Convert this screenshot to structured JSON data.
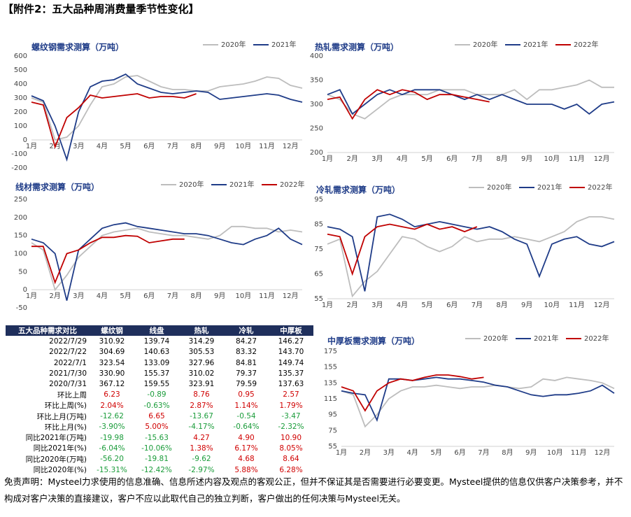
{
  "header": {
    "title": "【附件2：五大品种周消费量季节性变化】"
  },
  "chart_data": [
    {
      "type": "line",
      "title": "螺纹钢需求测算（万吨）",
      "categories": [
        "1月",
        null,
        "2月",
        null,
        "3月",
        null,
        "4月",
        null,
        "5月",
        null,
        "6月",
        null,
        "7月",
        null,
        "8月",
        null,
        "9月",
        null,
        "10月",
        null,
        "11月",
        null,
        "12月",
        null
      ],
      "ylim": [
        -200,
        600
      ],
      "yticks": [
        -200,
        -100,
        0,
        100,
        200,
        300,
        400,
        500,
        600
      ],
      "series": [
        {
          "name": "2020年",
          "color": "#bdbdbd",
          "values": [
            300,
            270,
            0,
            20,
            100,
            250,
            380,
            400,
            450,
            460,
            420,
            380,
            360,
            360,
            350,
            350,
            380,
            390,
            400,
            420,
            450,
            440,
            390,
            370
          ]
        },
        {
          "name": "2021年",
          "color": "#1f3c88",
          "values": [
            315,
            280,
            100,
            -140,
            200,
            380,
            420,
            430,
            470,
            400,
            370,
            340,
            330,
            340,
            350,
            340,
            290,
            300,
            310,
            320,
            330,
            320,
            290,
            270
          ]
        },
        {
          "color": "#c00000",
          "values": [
            270,
            250,
            -50,
            160,
            230,
            320,
            300,
            310,
            320,
            330,
            300,
            310,
            310,
            300,
            330,
            null,
            null,
            null,
            null,
            null,
            null,
            null,
            null,
            null
          ]
        }
      ]
    },
    {
      "type": "line",
      "title": "热轧需求测算（万吨）",
      "categories": [
        "1月",
        null,
        "2月",
        null,
        "3月",
        null,
        "4月",
        null,
        "5月",
        null,
        "6月",
        null,
        "7月",
        null,
        "8月",
        null,
        "9月",
        null,
        "10月",
        null,
        "11月",
        null,
        "12月",
        null
      ],
      "ylim": [
        200,
        400
      ],
      "yticks": [
        200,
        250,
        300,
        350,
        400
      ],
      "series": [
        {
          "name": "2020年",
          "color": "#bdbdbd",
          "values": [
            320,
            310,
            280,
            270,
            290,
            310,
            320,
            320,
            320,
            330,
            330,
            330,
            320,
            320,
            320,
            330,
            310,
            330,
            330,
            335,
            340,
            350,
            335,
            335
          ]
        },
        {
          "name": "2021年",
          "color": "#1f3c88",
          "values": [
            320,
            330,
            280,
            300,
            320,
            330,
            320,
            330,
            330,
            330,
            320,
            310,
            320,
            310,
            320,
            310,
            300,
            300,
            300,
            290,
            300,
            280,
            300,
            305
          ]
        },
        {
          "name": "2022年",
          "color": "#c00000",
          "values": [
            310,
            315,
            270,
            310,
            330,
            320,
            330,
            325,
            310,
            320,
            320,
            315,
            310,
            305,
            null,
            null,
            null,
            null,
            null,
            null,
            null,
            null,
            null,
            null
          ]
        }
      ]
    },
    {
      "type": "line",
      "title": "线材需求测算（万吨）",
      "categories": [
        "1月",
        null,
        "2月",
        null,
        "3月",
        null,
        "4月",
        null,
        "5月",
        null,
        "6月",
        null,
        "7月",
        null,
        "8月",
        null,
        "9月",
        null,
        "10月",
        null,
        "11月",
        null,
        "12月",
        null
      ],
      "ylim": [
        -50,
        250
      ],
      "yticks": [
        -50,
        0,
        50,
        100,
        150,
        200,
        250
      ],
      "series": [
        {
          "name": "2020年",
          "color": "#bdbdbd",
          "values": [
            130,
            110,
            0,
            40,
            90,
            120,
            150,
            160,
            165,
            170,
            160,
            155,
            150,
            150,
            145,
            140,
            150,
            175,
            175,
            170,
            170,
            160,
            165,
            160
          ]
        },
        {
          "name": "2021年",
          "color": "#1f3c88",
          "values": [
            140,
            130,
            100,
            -30,
            110,
            140,
            170,
            180,
            185,
            175,
            170,
            165,
            160,
            155,
            155,
            150,
            140,
            130,
            125,
            140,
            150,
            170,
            140,
            125
          ]
        },
        {
          "name": "2022年",
          "color": "#c00000",
          "values": [
            120,
            120,
            20,
            100,
            110,
            130,
            145,
            145,
            150,
            148,
            130,
            135,
            140,
            140,
            null,
            null,
            null,
            null,
            null,
            null,
            null,
            null,
            null,
            null
          ]
        }
      ]
    },
    {
      "type": "line",
      "title": "冷轧需求测算（万吨）",
      "categories": [
        "1月",
        null,
        "2月",
        null,
        "3月",
        null,
        "4月",
        null,
        "5月",
        null,
        "6月",
        null,
        "7月",
        null,
        "8月",
        null,
        "9月",
        null,
        "10月",
        null,
        "11月",
        null,
        "12月",
        null
      ],
      "ylim": [
        55,
        95
      ],
      "yticks": [
        55,
        65,
        75,
        85,
        95
      ],
      "series": [
        {
          "name": "2020年",
          "color": "#bdbdbd",
          "values": [
            77,
            79,
            56,
            62,
            66,
            73,
            80,
            79,
            76,
            74,
            76,
            80,
            78,
            79,
            79,
            80,
            79,
            78,
            80,
            82,
            86,
            88,
            88,
            87
          ]
        },
        {
          "name": "2021年",
          "color": "#1f3c88",
          "values": [
            84,
            83,
            80,
            58,
            88,
            89,
            87,
            84,
            85,
            86,
            85,
            84,
            83,
            84,
            82,
            79,
            77,
            64,
            77,
            79,
            80,
            77,
            76,
            78
          ]
        },
        {
          "name": "2022年",
          "color": "#c00000",
          "values": [
            81,
            80,
            65,
            80,
            84,
            85,
            84,
            83,
            85,
            83,
            84,
            82,
            84,
            null,
            null,
            null,
            null,
            null,
            null,
            null,
            null,
            null,
            null,
            null
          ]
        }
      ]
    },
    {
      "type": "line",
      "title": "中厚板需求测算（万吨）",
      "categories": [
        "1月",
        null,
        "2月",
        null,
        "3月",
        null,
        "4月",
        null,
        "5月",
        null,
        "6月",
        null,
        "7月",
        null,
        "8月",
        null,
        "9月",
        null,
        "10月",
        null,
        "11月",
        null,
        "12月",
        null
      ],
      "ylim": [
        55,
        175
      ],
      "yticks": [
        55,
        75,
        95,
        115,
        135,
        155,
        175
      ],
      "series": [
        {
          "name": "2020年",
          "color": "#bdbdbd",
          "values": [
            125,
            120,
            80,
            95,
            115,
            125,
            130,
            130,
            132,
            130,
            128,
            130,
            130,
            132,
            130,
            128,
            130,
            140,
            138,
            142,
            140,
            138,
            135,
            128
          ]
        },
        {
          "name": "2021年",
          "color": "#1f3c88",
          "values": [
            125,
            122,
            120,
            88,
            140,
            140,
            138,
            140,
            142,
            140,
            140,
            138,
            136,
            132,
            130,
            125,
            120,
            118,
            120,
            120,
            122,
            125,
            132,
            122
          ]
        },
        {
          "name": "2022年",
          "color": "#c00000",
          "values": [
            130,
            125,
            100,
            125,
            135,
            140,
            138,
            142,
            145,
            145,
            143,
            140,
            142,
            null,
            null,
            null,
            null,
            null,
            null,
            null,
            null,
            null,
            null,
            null
          ]
        }
      ]
    }
  ],
  "table": {
    "header": [
      "五大品种需求对比",
      "螺纹钢",
      "线盘",
      "热轧",
      "冷轧",
      "中厚板"
    ],
    "rows": [
      [
        "2022/7/29",
        "310.92",
        "139.74",
        "314.29",
        "84.27",
        "146.27"
      ],
      [
        "2022/7/22",
        "304.69",
        "140.63",
        "305.53",
        "83.32",
        "143.70"
      ],
      [
        "2022/7/1",
        "323.54",
        "133.09",
        "327.96",
        "84.81",
        "149.74"
      ],
      [
        "2021/7/30",
        "330.90",
        "155.37",
        "310.02",
        "79.37",
        "135.37"
      ],
      [
        "2020/7/31",
        "367.12",
        "159.55",
        "323.91",
        "79.59",
        "137.63"
      ],
      [
        "环比上周",
        "6.23",
        "-0.89",
        "8.76",
        "0.95",
        "2.57"
      ],
      [
        "环比上周(%)",
        "2.04%",
        "-0.63%",
        "2.87%",
        "1.14%",
        "1.79%"
      ],
      [
        "环比上月(万吨)",
        "-12.62",
        "6.65",
        "-13.67",
        "-0.54",
        "-3.47"
      ],
      [
        "环比上月(%)",
        "-3.90%",
        "5.00%",
        "-4.17%",
        "-0.64%",
        "-2.32%"
      ],
      [
        "同比2021年(万吨)",
        "-19.98",
        "-15.63",
        "4.27",
        "4.90",
        "10.90"
      ],
      [
        "同比2021年(%)",
        "-6.04%",
        "-10.06%",
        "1.38%",
        "6.17%",
        "8.05%"
      ],
      [
        "同比2020年(万吨)",
        "-56.20",
        "-19.81",
        "-9.62",
        "4.68",
        "8.64"
      ],
      [
        "同比2020年(%)",
        "-15.31%",
        "-12.42%",
        "-2.97%",
        "5.88%",
        "6.28%"
      ]
    ]
  },
  "disclaimer": "免责声明：Mysteel力求使用的信息准确、信息所述内容及观点的客观公正，但并不保证其是否需要进行必要变更。Mysteel提供的信息仅供客户决策参考，并不构成对客户决策的直接建议，客户不应以此取代自己的独立判断，客户做出的任何决策与Mysteel无关。"
}
